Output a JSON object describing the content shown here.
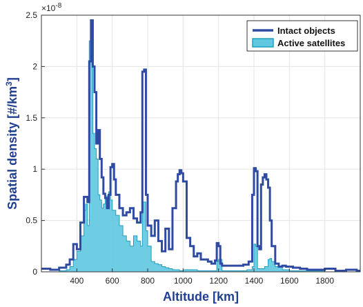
{
  "chart_data": {
    "type": "area",
    "xlabel": "Altitude [km]",
    "ylabel_main": "Spatial density [#/km",
    "ylabel_sup": "3",
    "ylabel_end": "]",
    "y_multiplier_base": "×10",
    "y_multiplier_exp": "-8",
    "xlim": [
      200,
      2000
    ],
    "ylim": [
      0,
      2.5
    ],
    "x_ticks": [
      400,
      600,
      800,
      1000,
      1200,
      1400,
      1600,
      1800
    ],
    "x_tick_labels": [
      "400",
      "600",
      "800",
      "1000",
      "1200",
      "1400",
      "1600",
      "1800"
    ],
    "y_ticks": [
      0,
      0.5,
      1,
      1.5,
      2,
      2.5
    ],
    "y_tick_labels": [
      "0",
      "0.5",
      "1",
      "1.5",
      "2",
      "2.5"
    ],
    "grid": true,
    "legend_position": "top-right",
    "series": [
      {
        "name": "Intact objects",
        "style": "line",
        "color": "#2e4aa3",
        "x": [
          200,
          250,
          300,
          340,
          360,
          380,
          400,
          420,
          440,
          460,
          470,
          480,
          490,
          500,
          510,
          520,
          530,
          540,
          550,
          560,
          570,
          580,
          590,
          600,
          610,
          620,
          640,
          660,
          680,
          700,
          720,
          740,
          760,
          770,
          780,
          790,
          800,
          820,
          840,
          860,
          880,
          900,
          920,
          940,
          960,
          970,
          980,
          990,
          1000,
          1020,
          1040,
          1060,
          1080,
          1100,
          1120,
          1140,
          1160,
          1180,
          1190,
          1200,
          1210,
          1220,
          1260,
          1300,
          1340,
          1370,
          1390,
          1400,
          1410,
          1420,
          1430,
          1440,
          1450,
          1460,
          1470,
          1480,
          1490,
          1500,
          1520,
          1540,
          1560,
          1580,
          1600,
          1620,
          1660,
          1700,
          1740,
          1800,
          1860,
          1920,
          1980,
          2000
        ],
        "y": [
          0.03,
          0.02,
          0.04,
          0.07,
          0.12,
          0.27,
          0.22,
          0.48,
          0.73,
          0.68,
          2.05,
          2.45,
          2.0,
          1.75,
          1.25,
          1.38,
          1.1,
          0.92,
          0.76,
          0.72,
          0.62,
          0.75,
          1.02,
          1.05,
          0.9,
          0.75,
          0.62,
          0.55,
          0.58,
          0.62,
          0.52,
          0.48,
          0.58,
          1.95,
          1.97,
          0.75,
          0.45,
          0.35,
          0.5,
          0.3,
          0.2,
          0.42,
          0.22,
          0.62,
          0.88,
          0.95,
          0.99,
          0.96,
          0.88,
          0.33,
          0.25,
          0.15,
          0.18,
          0.12,
          0.12,
          0.1,
          0.08,
          0.11,
          0.28,
          0.25,
          0.08,
          0.06,
          0.06,
          0.06,
          0.07,
          0.1,
          0.75,
          1.01,
          0.98,
          0.25,
          0.22,
          0.85,
          0.92,
          0.95,
          0.9,
          0.82,
          0.5,
          0.25,
          0.08,
          0.05,
          0.06,
          0.05,
          0.05,
          0.04,
          0.03,
          0.02,
          0.02,
          0.03,
          0.01,
          0.02,
          0.01,
          0.01
        ]
      },
      {
        "name": "Active satellites",
        "style": "filled",
        "color": "#5fc8e0",
        "x": [
          200,
          300,
          340,
          360,
          380,
          400,
          420,
          440,
          450,
          460,
          470,
          480,
          490,
          500,
          510,
          520,
          530,
          540,
          550,
          560,
          570,
          580,
          590,
          600,
          620,
          640,
          660,
          680,
          700,
          720,
          740,
          760,
          770,
          780,
          790,
          800,
          820,
          840,
          860,
          880,
          900,
          920,
          940,
          960,
          980,
          1000,
          1040,
          1080,
          1100,
          1140,
          1180,
          1190,
          1200,
          1220,
          1300,
          1360,
          1390,
          1400,
          1410,
          1420,
          1460,
          1480,
          1490,
          1500,
          1520,
          1560,
          1600,
          1700,
          1800,
          1900,
          2000
        ],
        "y": [
          0.0,
          0.01,
          0.02,
          0.05,
          0.12,
          0.2,
          0.35,
          0.6,
          0.66,
          0.45,
          2.25,
          2.25,
          1.35,
          1.2,
          1.1,
          0.75,
          0.7,
          0.62,
          0.66,
          0.72,
          0.74,
          0.78,
          0.7,
          0.6,
          0.55,
          0.45,
          0.35,
          0.3,
          0.25,
          0.35,
          0.3,
          0.25,
          0.68,
          0.68,
          0.4,
          0.25,
          0.1,
          0.08,
          0.07,
          0.05,
          0.04,
          0.03,
          0.02,
          0.02,
          0.01,
          0.02,
          0.02,
          0.01,
          0.01,
          0.01,
          0.01,
          0.1,
          0.12,
          0.01,
          0.01,
          0.02,
          0.05,
          0.27,
          0.25,
          0.03,
          0.05,
          0.12,
          0.13,
          0.1,
          0.05,
          0.02,
          0.01,
          0.01,
          0.0,
          0.0,
          0.0
        ]
      }
    ]
  }
}
